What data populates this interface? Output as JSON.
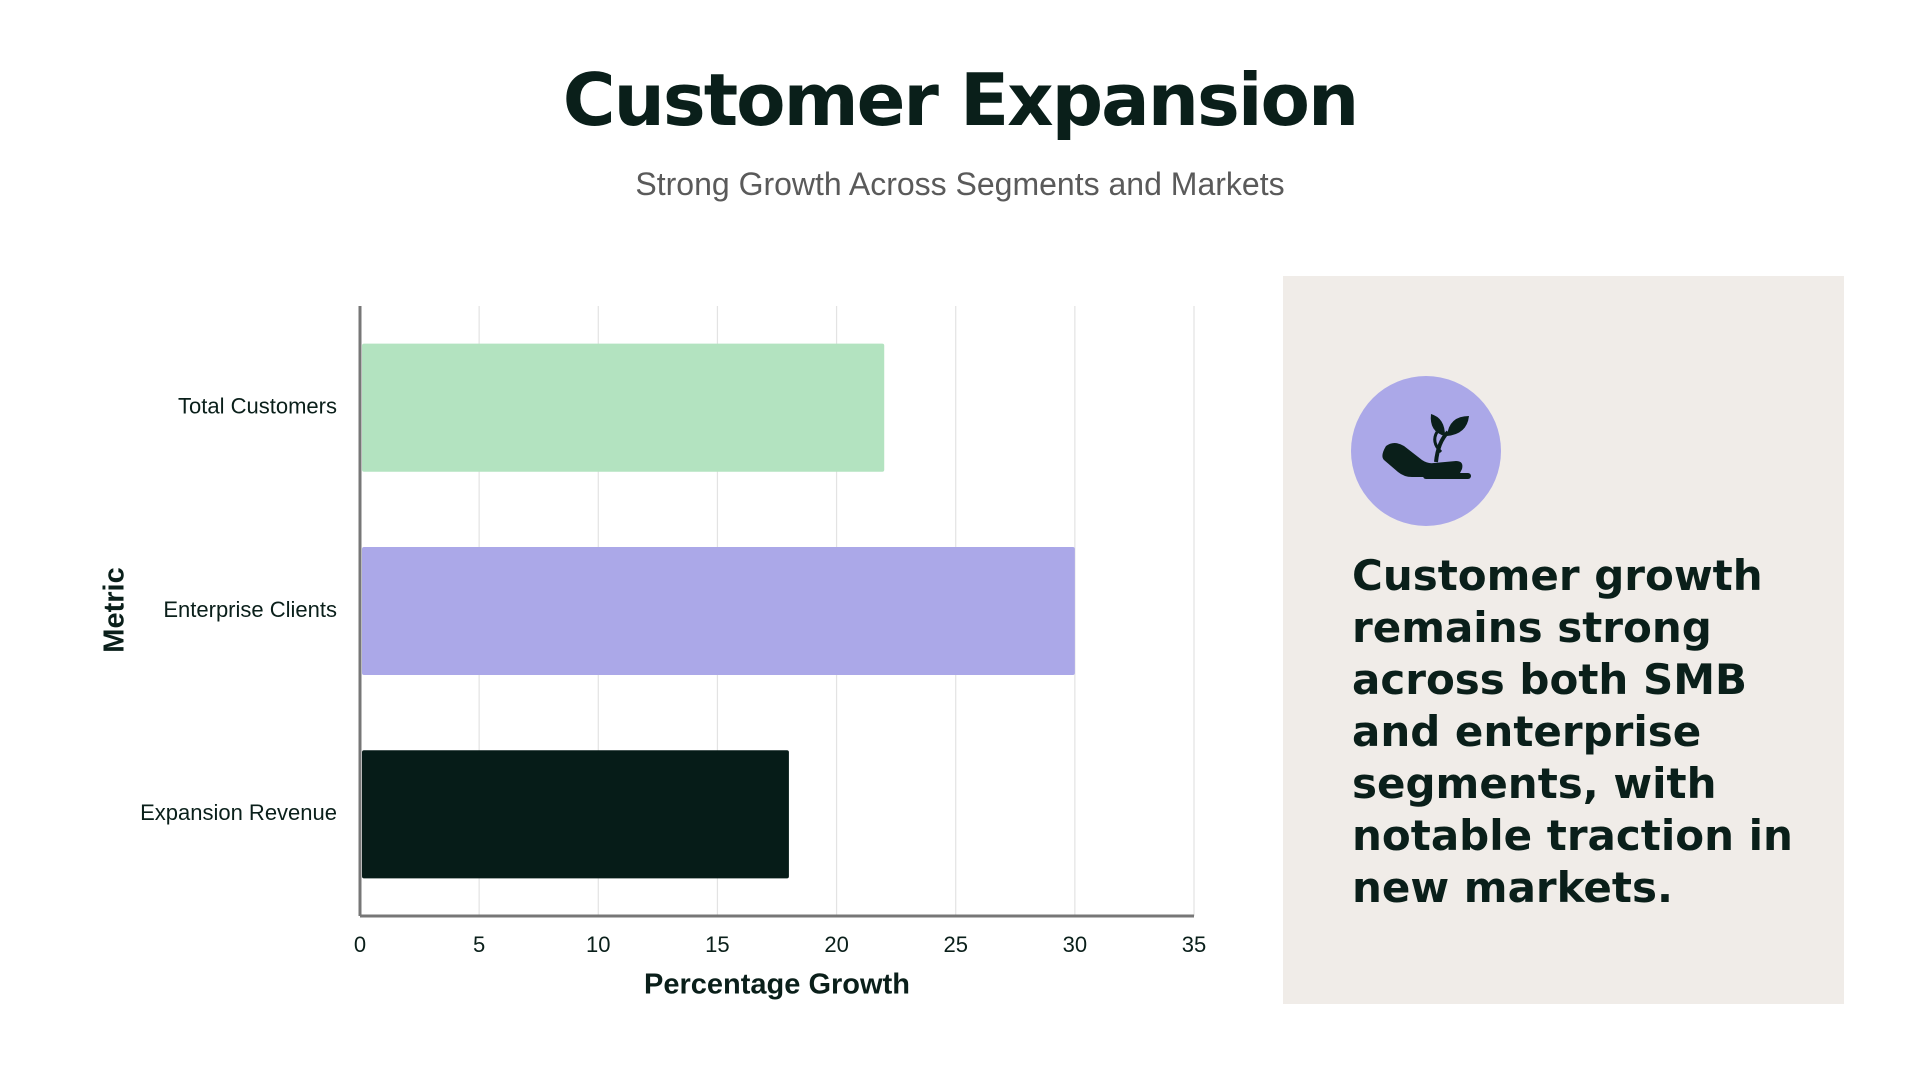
{
  "header": {
    "title": "Customer Expansion",
    "subtitle": "Strong Growth Across Segments and Markets"
  },
  "chart_data": {
    "type": "bar",
    "orientation": "horizontal",
    "categories": [
      "Total Customers",
      "Enterprise Clients",
      "Expansion Revenue"
    ],
    "values": [
      22,
      30,
      18
    ],
    "colors": [
      "#b3e3c0",
      "#aba8e8",
      "#061c18"
    ],
    "xlim": [
      0,
      35
    ],
    "xticks": [
      0,
      5,
      10,
      15,
      20,
      25,
      30,
      35
    ],
    "x_label": "Percentage Growth",
    "y_label": "Metric",
    "grid": true
  },
  "panel": {
    "text": "Customer growth remains strong across both SMB and enterprise segments, with notable traction in new markets."
  }
}
